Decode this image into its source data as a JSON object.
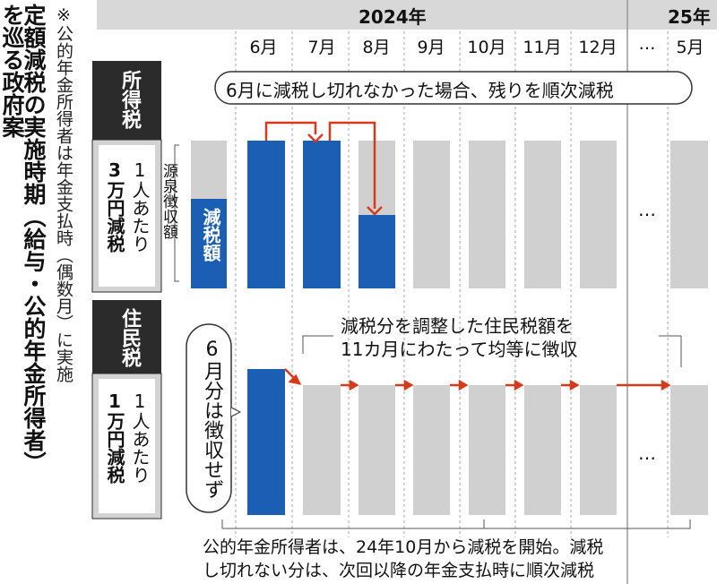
{
  "title": {
    "line1": "定額減税の実施時期（給与・公的年金所得者）",
    "line2": "を巡る政府案"
  },
  "note": "※公的年金所得者は年金支払時（偶数月）に実施",
  "header": {
    "year1": "2024年",
    "year2": "25年",
    "months": [
      "6月",
      "7月",
      "8月",
      "9月",
      "10月",
      "11月",
      "12月",
      "…",
      "5月"
    ]
  },
  "income_tax": {
    "label": "所得税",
    "per_person": "1人あたり",
    "amount": "3万円減税",
    "withholding": "源泉徴収額",
    "reduction": "減税額",
    "callout": "6月に減税し切れなかった場合、残りを順次減税",
    "ellipsis": "…"
  },
  "resident_tax": {
    "label": "住民税",
    "per_person": "1人あたり",
    "amount": "1万円減税",
    "june_note": "6月分は徴収せず",
    "callout_lines": [
      "減税分を調整した住民税額を",
      "11カ月にわたって均等に徴収"
    ],
    "ellipsis": "…"
  },
  "footer": {
    "lines": [
      "公的年金所得者は、24年10月から減税を開始。減税",
      "し切れない分は、次回以降の年金支払時に順次減税"
    ]
  }
}
